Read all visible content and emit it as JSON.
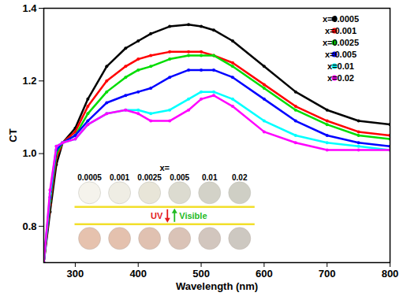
{
  "chart_data": {
    "type": "line",
    "x_label": "Wavelength (nm)",
    "y_label": "CT",
    "x": [
      250,
      260,
      270,
      280,
      300,
      320,
      350,
      380,
      400,
      420,
      450,
      480,
      500,
      520,
      550,
      600,
      650,
      700,
      750,
      800
    ],
    "series": [
      {
        "name": "x=0.0005",
        "color": "#000000",
        "values": [
          0.7,
          0.84,
          0.97,
          1.03,
          1.07,
          1.15,
          1.24,
          1.29,
          1.31,
          1.33,
          1.35,
          1.355,
          1.35,
          1.34,
          1.31,
          1.24,
          1.17,
          1.12,
          1.09,
          1.08
        ]
      },
      {
        "name": "x=0.001",
        "color": "#ff0000",
        "values": [
          0.7,
          0.86,
          0.99,
          1.03,
          1.06,
          1.13,
          1.2,
          1.24,
          1.26,
          1.27,
          1.28,
          1.28,
          1.28,
          1.27,
          1.25,
          1.19,
          1.13,
          1.09,
          1.06,
          1.05
        ]
      },
      {
        "name": "x=0.0025",
        "color": "#00dd00",
        "values": [
          0.7,
          0.87,
          1.0,
          1.03,
          1.05,
          1.11,
          1.17,
          1.21,
          1.23,
          1.24,
          1.26,
          1.27,
          1.27,
          1.27,
          1.24,
          1.18,
          1.12,
          1.08,
          1.05,
          1.04
        ]
      },
      {
        "name": "x=0.005",
        "color": "#0000ff",
        "values": [
          0.7,
          0.88,
          1.01,
          1.03,
          1.05,
          1.09,
          1.14,
          1.16,
          1.17,
          1.18,
          1.21,
          1.23,
          1.23,
          1.23,
          1.21,
          1.15,
          1.09,
          1.05,
          1.03,
          1.02
        ]
      },
      {
        "name": "x=0.01",
        "color": "#00ffff",
        "values": [
          0.7,
          0.89,
          1.02,
          1.03,
          1.04,
          1.08,
          1.11,
          1.12,
          1.12,
          1.11,
          1.12,
          1.15,
          1.17,
          1.17,
          1.15,
          1.09,
          1.05,
          1.03,
          1.02,
          1.01
        ]
      },
      {
        "name": "x=0.02",
        "color": "#ff00ff",
        "values": [
          0.7,
          0.9,
          1.02,
          1.03,
          1.04,
          1.08,
          1.11,
          1.12,
          1.11,
          1.09,
          1.09,
          1.12,
          1.15,
          1.16,
          1.13,
          1.06,
          1.03,
          1.01,
          1.01,
          1.01
        ]
      }
    ],
    "xlim": [
      250,
      800
    ],
    "xticks": [
      300,
      400,
      500,
      600,
      700,
      800
    ],
    "ylim": [
      0.7,
      1.4
    ],
    "yticks": [
      0.8,
      {
        "value": 1.0,
        "label": "1.0"
      },
      1.2,
      1.4
    ],
    "legend": "top-right",
    "marker": "circle",
    "line_style": "solid",
    "grid": false,
    "inset": {
      "title": "x=",
      "sample_labels": [
        "0.0005",
        "0.001",
        "0.0025",
        "0.005",
        "0.01",
        "0.02"
      ],
      "down_label": "UV",
      "up_label": "Visible"
    }
  }
}
